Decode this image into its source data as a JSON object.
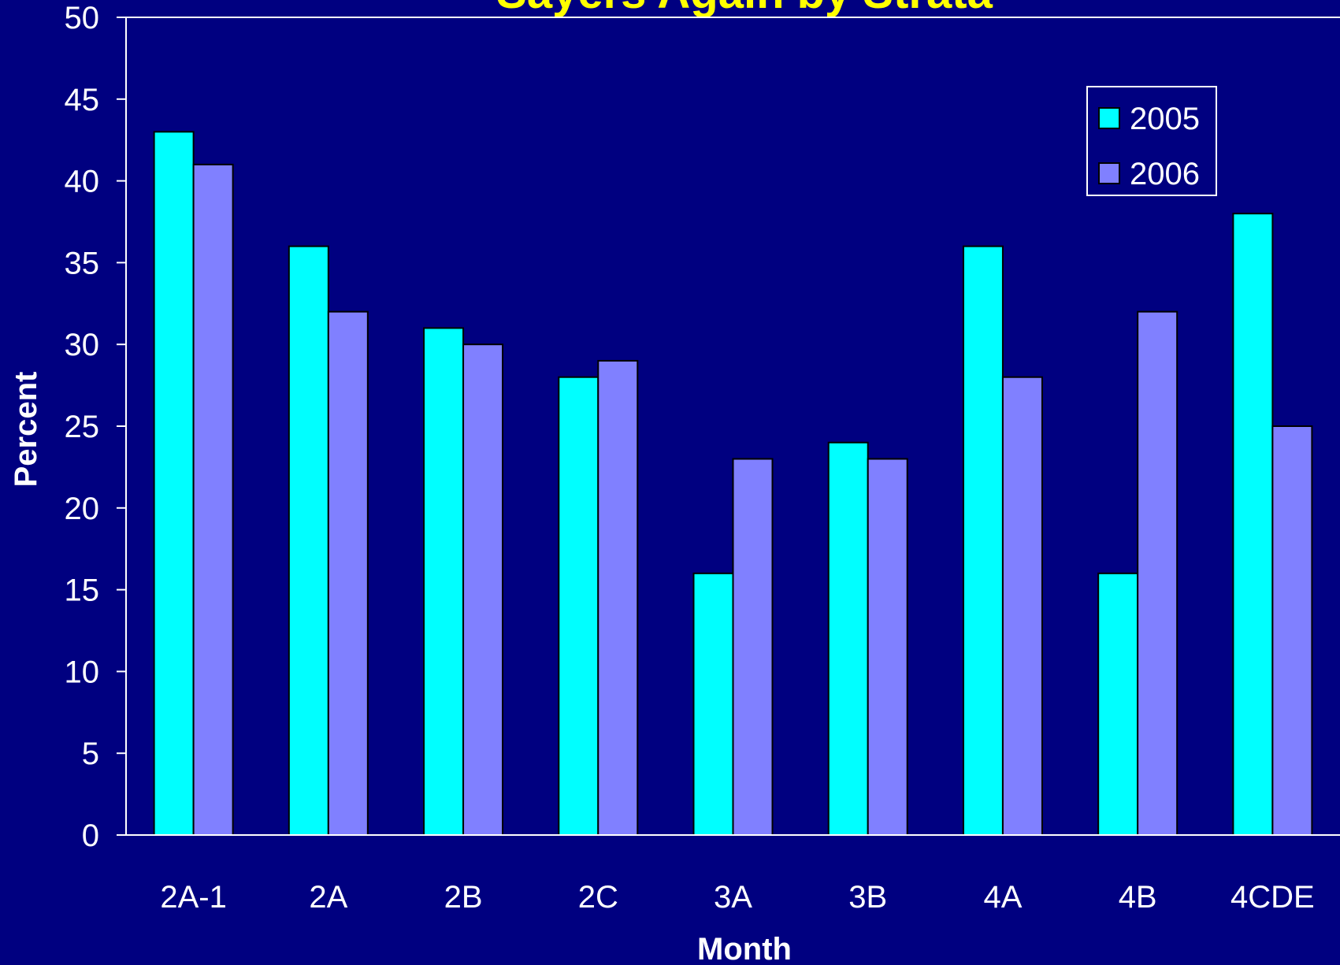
{
  "chart_data": {
    "type": "bar",
    "title": "Sayers Again by Strata",
    "xlabel": "Month",
    "ylabel": "Percent",
    "ylim": [
      0,
      50
    ],
    "yticks": [
      0,
      5,
      10,
      15,
      20,
      25,
      30,
      35,
      40,
      45,
      50
    ],
    "categories": [
      "2A-1",
      "2A",
      "2B",
      "2C",
      "3A",
      "3B",
      "4A",
      "4B",
      "4CDE"
    ],
    "series": [
      {
        "name": "2005",
        "color": "#00ffff",
        "values": [
          43,
          36,
          31,
          28,
          16,
          24,
          36,
          16,
          38
        ]
      },
      {
        "name": "2006",
        "color": "#8080ff",
        "values": [
          41,
          32,
          30,
          29,
          23,
          23,
          28,
          32,
          25
        ]
      }
    ],
    "legend": {
      "position": "top-right"
    },
    "grid": false,
    "colors": {
      "background": "#000080",
      "axis": "#ffffff",
      "title": "#ffff00"
    }
  }
}
